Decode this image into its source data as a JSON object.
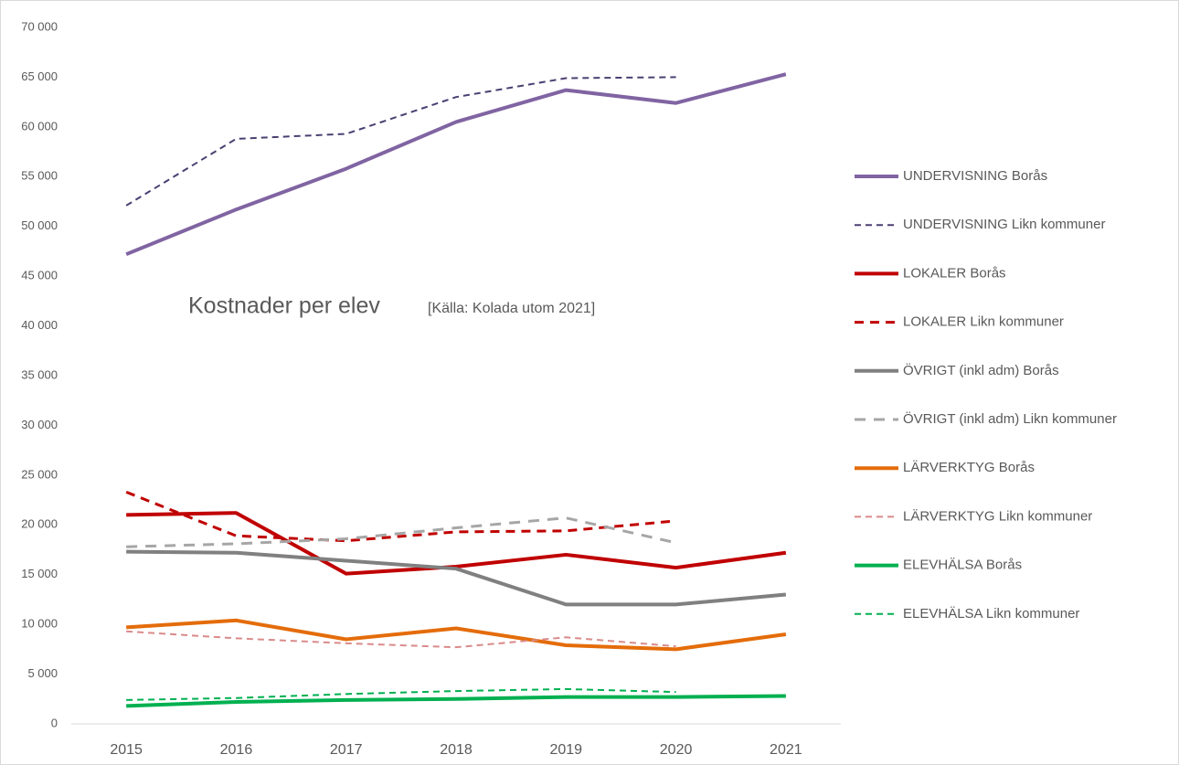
{
  "chart_data": {
    "type": "line",
    "title": "Kostnader per elev",
    "subtitle": "[Källa: Kolada  utom 2021]",
    "categories": [
      "2015",
      "2016",
      "2017",
      "2018",
      "2019",
      "2020",
      "2021"
    ],
    "ylim": [
      0,
      70000
    ],
    "yticks": [
      0,
      {
        "value": 5000,
        "label": "5 000"
      },
      {
        "value": 10000,
        "label": "10 000"
      },
      {
        "value": 15000,
        "label": "15 000"
      },
      {
        "value": 20000,
        "label": "20 000"
      },
      {
        "value": 25000,
        "label": "25 000"
      },
      {
        "value": 30000,
        "label": "30 000"
      },
      {
        "value": 35000,
        "label": "35 000"
      },
      {
        "value": 40000,
        "label": "40 000"
      },
      {
        "value": 45000,
        "label": "45 000"
      },
      {
        "value": 50000,
        "label": "50 000"
      },
      {
        "value": 55000,
        "label": "55 000"
      },
      {
        "value": 60000,
        "label": "60 000"
      },
      {
        "value": 65000,
        "label": "65 000"
      },
      {
        "value": 70000,
        "label": "70 000"
      }
    ],
    "grid": false,
    "legend": "right",
    "series": [
      {
        "name": "UNDERVISNING Borås",
        "color": "#8064a2",
        "dash": "solid",
        "values": [
          47200,
          51700,
          55800,
          60500,
          63700,
          62400,
          65300
        ]
      },
      {
        "name": "UNDERVISNING Likn kommuner",
        "color": "#4b3f72",
        "dash": "dashed-thin",
        "values": [
          52100,
          58800,
          59300,
          63000,
          64900,
          65000,
          null
        ]
      },
      {
        "name": "LOKALER Borås",
        "color": "#c00000",
        "dash": "solid",
        "values": [
          21000,
          21200,
          15100,
          15800,
          17000,
          15700,
          17200
        ]
      },
      {
        "name": "LOKALER Likn kommuner",
        "color": "#c00000",
        "dash": "dashed",
        "values": [
          23300,
          18900,
          18400,
          19300,
          19400,
          20400,
          null
        ]
      },
      {
        "name": "ÖVRIGT (inkl adm) Borås",
        "color": "#808080",
        "dash": "solid",
        "values": [
          17300,
          17200,
          16400,
          15600,
          12000,
          12000,
          13000
        ]
      },
      {
        "name": "ÖVRIGT (inkl adm) Likn kommuner",
        "color": "#a6a6a6",
        "dash": "dashed-long",
        "values": [
          17800,
          18100,
          18600,
          19700,
          20700,
          18200,
          null
        ]
      },
      {
        "name": "LÄRVERKTYG Borås",
        "color": "#e46c0a",
        "dash": "solid",
        "values": [
          9700,
          10400,
          8500,
          9600,
          7900,
          7500,
          9000
        ]
      },
      {
        "name": "LÄRVERKTYG Likn kommuner",
        "color": "#da8a8a",
        "dash": "dashed-thin",
        "values": [
          9300,
          8600,
          8100,
          7700,
          8700,
          7800,
          null
        ]
      },
      {
        "name": "ELEVHÄLSA Borås",
        "color": "#00b050",
        "dash": "solid",
        "values": [
          1800,
          2200,
          2400,
          2500,
          2700,
          2700,
          2800
        ]
      },
      {
        "name": "ELEVHÄLSA Likn kommuner",
        "color": "#00b050",
        "dash": "dashed-thin",
        "values": [
          2400,
          2600,
          3000,
          3300,
          3500,
          3200,
          null
        ]
      }
    ]
  }
}
